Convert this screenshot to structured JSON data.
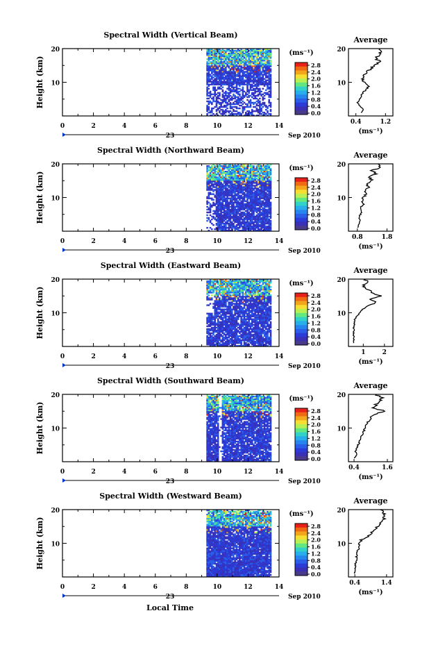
{
  "figure": {
    "xlabel": "Local Time",
    "date_day": "23",
    "date_suffix": "Sep 2010",
    "ylabel": "Height (km)",
    "unit": "(ms⁻¹)",
    "avg_title": "Average",
    "avg_xlabel": "(ms⁻¹)",
    "colorbar_ticks": [
      "2.8",
      "2.4",
      "2.0",
      "1.6",
      "1.2",
      "0.8",
      "0.4",
      "0.0"
    ],
    "colorbar_colors": [
      "#e8201a",
      "#f06a14",
      "#f3a61c",
      "#f6df30",
      "#b8ef52",
      "#62e87e",
      "#33d2c8",
      "#28aeea",
      "#2586ee",
      "#2a5ee8",
      "#2b3bd8",
      "#3a30b6",
      "#4a3a8a"
    ],
    "x_ticks": [
      0,
      2,
      4,
      6,
      8,
      10,
      12,
      14
    ],
    "y_ticks": [
      10,
      20
    ]
  },
  "chart_data": [
    {
      "type": "heatmap",
      "title": "Spectral Width (Vertical Beam)",
      "x_range": [
        0,
        14
      ],
      "y_range": [
        0,
        20
      ],
      "data_start_hour": 9.3,
      "data_end_hour": 13.5,
      "avg_x_ticks": [
        "0.4",
        "1.2"
      ],
      "avg_x_range": [
        0.2,
        1.4
      ],
      "avg_profile": [
        [
          0.55,
          1
        ],
        [
          0.6,
          2
        ],
        [
          0.5,
          3
        ],
        [
          0.45,
          4
        ],
        [
          0.5,
          5
        ],
        [
          0.55,
          6
        ],
        [
          0.6,
          7
        ],
        [
          0.7,
          8
        ],
        [
          0.75,
          9
        ],
        [
          0.62,
          10
        ],
        [
          0.58,
          11
        ],
        [
          0.6,
          12
        ],
        [
          0.7,
          13
        ],
        [
          0.8,
          14
        ],
        [
          0.9,
          15
        ],
        [
          1.05,
          16
        ],
        [
          0.95,
          17
        ],
        [
          1.0,
          18
        ],
        [
          1.1,
          19
        ],
        [
          1.05,
          20
        ]
      ]
    },
    {
      "type": "heatmap",
      "title": "Spectral Width (Northward Beam)",
      "x_range": [
        0,
        14
      ],
      "y_range": [
        0,
        20
      ],
      "data_start_hour": 9.3,
      "data_end_hour": 13.5,
      "avg_x_ticks": [
        "0.8",
        "1.8"
      ],
      "avg_x_range": [
        0.5,
        2.0
      ],
      "avg_profile": [
        [
          0.8,
          1
        ],
        [
          0.85,
          2
        ],
        [
          0.9,
          3
        ],
        [
          0.85,
          4
        ],
        [
          0.9,
          5
        ],
        [
          0.95,
          6
        ],
        [
          0.9,
          7
        ],
        [
          1.0,
          8
        ],
        [
          0.95,
          9
        ],
        [
          1.0,
          10
        ],
        [
          1.1,
          11
        ],
        [
          1.05,
          12
        ],
        [
          1.2,
          13
        ],
        [
          1.1,
          14
        ],
        [
          1.3,
          15
        ],
        [
          1.2,
          16
        ],
        [
          1.4,
          17
        ],
        [
          1.3,
          18
        ],
        [
          1.6,
          19
        ],
        [
          1.5,
          20
        ]
      ]
    },
    {
      "type": "heatmap",
      "title": "Spectral Width (Eastward Beam)",
      "x_range": [
        0,
        14
      ],
      "y_range": [
        0,
        20
      ],
      "data_start_hour": 9.3,
      "data_end_hour": 13.5,
      "avg_x_ticks": [
        "1",
        "2"
      ],
      "avg_x_range": [
        0.3,
        2.4
      ],
      "avg_profile": [
        [
          0.55,
          1
        ],
        [
          0.55,
          2
        ],
        [
          0.55,
          3
        ],
        [
          0.55,
          4
        ],
        [
          0.55,
          5
        ],
        [
          0.55,
          6
        ],
        [
          0.58,
          7
        ],
        [
          0.6,
          8
        ],
        [
          0.7,
          9
        ],
        [
          0.8,
          10
        ],
        [
          1.0,
          11
        ],
        [
          1.2,
          12
        ],
        [
          1.6,
          13
        ],
        [
          1.3,
          14
        ],
        [
          1.8,
          15
        ],
        [
          1.4,
          16
        ],
        [
          1.2,
          17
        ],
        [
          1.0,
          18
        ],
        [
          1.2,
          19
        ],
        [
          1.1,
          20
        ]
      ]
    },
    {
      "type": "heatmap",
      "title": "Spectral Width (Southward Beam)",
      "x_range": [
        0,
        14
      ],
      "y_range": [
        0,
        20
      ],
      "data_start_hour": 9.3,
      "data_end_hour": 13.5,
      "avg_x_ticks": [
        "0.4",
        "1.6"
      ],
      "avg_x_range": [
        0.2,
        1.8
      ],
      "avg_profile": [
        [
          0.4,
          1
        ],
        [
          0.5,
          2
        ],
        [
          0.45,
          3
        ],
        [
          0.5,
          4
        ],
        [
          0.55,
          5
        ],
        [
          0.6,
          6
        ],
        [
          0.65,
          7
        ],
        [
          0.7,
          8
        ],
        [
          0.75,
          9
        ],
        [
          0.8,
          10
        ],
        [
          0.85,
          11
        ],
        [
          0.9,
          12
        ],
        [
          1.0,
          13
        ],
        [
          1.1,
          14
        ],
        [
          1.5,
          15
        ],
        [
          1.1,
          16
        ],
        [
          1.2,
          17
        ],
        [
          1.3,
          18
        ],
        [
          1.4,
          19
        ],
        [
          1.2,
          20
        ]
      ]
    },
    {
      "type": "heatmap",
      "title": "Spectral Width (Westward Beam)",
      "x_range": [
        0,
        14
      ],
      "y_range": [
        0,
        20
      ],
      "data_start_hour": 9.3,
      "data_end_hour": 13.5,
      "avg_x_ticks": [
        "0.4",
        "1.4"
      ],
      "avg_x_range": [
        0.2,
        1.6
      ],
      "avg_profile": [
        [
          0.4,
          1
        ],
        [
          0.4,
          2
        ],
        [
          0.42,
          3
        ],
        [
          0.42,
          4
        ],
        [
          0.45,
          5
        ],
        [
          0.45,
          6
        ],
        [
          0.48,
          7
        ],
        [
          0.5,
          8
        ],
        [
          0.55,
          9
        ],
        [
          0.55,
          10
        ],
        [
          0.6,
          11
        ],
        [
          0.8,
          12
        ],
        [
          0.9,
          13
        ],
        [
          1.0,
          14
        ],
        [
          1.1,
          15
        ],
        [
          1.2,
          16
        ],
        [
          1.3,
          17
        ],
        [
          1.35,
          18
        ],
        [
          1.3,
          19
        ],
        [
          1.2,
          20
        ]
      ]
    }
  ]
}
